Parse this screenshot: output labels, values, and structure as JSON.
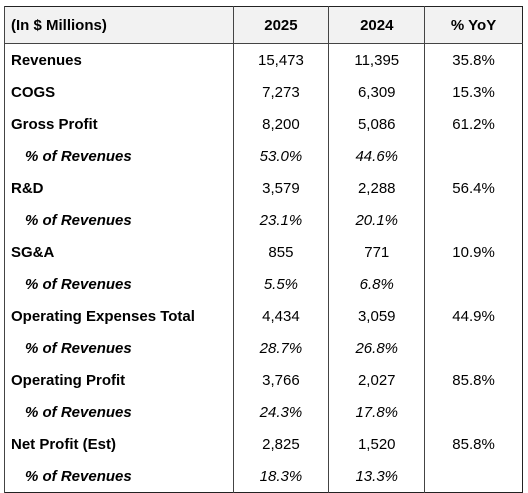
{
  "table": {
    "header": [
      "(In $ Millions)",
      "2025",
      "2024",
      "% YoY"
    ],
    "rows": [
      [
        "Revenues",
        "15,473",
        "11,395",
        "35.8%"
      ],
      [
        "COGS",
        "7,273",
        "6,309",
        "15.3%"
      ],
      [
        "Gross Profit",
        "8,200",
        "5,086",
        "61.2%"
      ],
      [
        "% of Revenues",
        "53.0%",
        "44.6%",
        null
      ],
      [
        "R&D",
        "3,579",
        "2,288",
        "56.4%"
      ],
      [
        "% of Revenues",
        "23.1%",
        "20.1%",
        null
      ],
      [
        "SG&A",
        "855",
        "771",
        "10.9%"
      ],
      [
        "% of Revenues",
        "5.5%",
        "6.8%",
        null
      ],
      [
        "Operating Expenses Total",
        "4,434",
        "3,059",
        "44.9%"
      ],
      [
        "% of Revenues",
        "28.7%",
        "26.8%",
        null
      ],
      [
        "Operating Profit",
        "3,766",
        "2,027",
        "85.8%"
      ],
      [
        "% of Revenues",
        "24.3%",
        "17.8%",
        null
      ],
      [
        "Net Profit (Est)",
        "2,825",
        "1,520",
        "85.8%"
      ],
      [
        "% of Revenues",
        "18.3%",
        "13.3%",
        null
      ]
    ]
  }
}
